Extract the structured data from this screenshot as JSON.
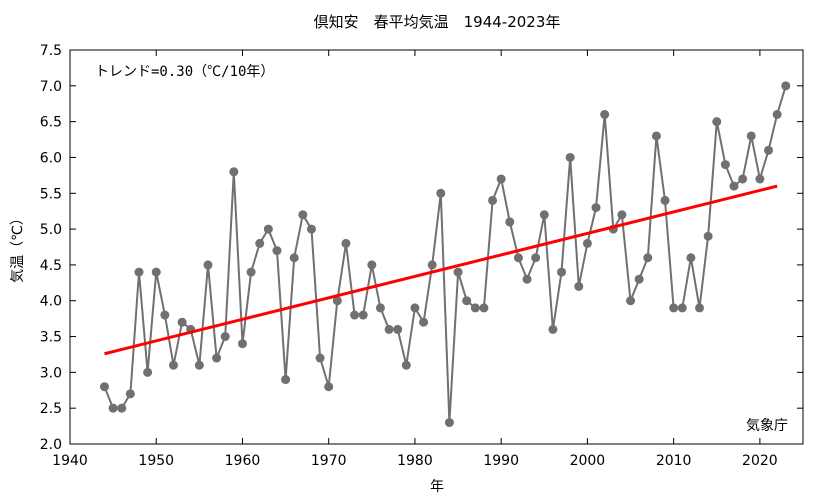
{
  "chart_data": {
    "type": "line",
    "title": "倶知安　春平均気温　1944-2023年",
    "xlabel": "年",
    "ylabel": "気温（℃）",
    "annotation": "トレンド=0.30（℃/10年）",
    "source": "気象庁",
    "xlim": [
      1940,
      2025
    ],
    "ylim": [
      2.0,
      7.5
    ],
    "x_ticks": [
      "1940",
      "1950",
      "1960",
      "1970",
      "1980",
      "1990",
      "2000",
      "2010",
      "2020"
    ],
    "y_ticks": [
      "2.0",
      "2.5",
      "3.0",
      "3.5",
      "4.0",
      "4.5",
      "5.0",
      "5.5",
      "6.0",
      "6.5",
      "7.0",
      "7.5"
    ],
    "grid": false,
    "series": [
      {
        "color": "#707070",
        "x": [
          1944,
          1945,
          1946,
          1947,
          1948,
          1949,
          1950,
          1951,
          1952,
          1953,
          1954,
          1955,
          1956,
          1957,
          1958,
          1959,
          1960,
          1961,
          1962,
          1963,
          1964,
          1965,
          1966,
          1967,
          1968,
          1969,
          1970,
          1971,
          1972,
          1973,
          1974,
          1975,
          1976,
          1977,
          1978,
          1979,
          1980,
          1981,
          1982,
          1983,
          1984,
          1985,
          1986,
          1987,
          1988,
          1989,
          1990,
          1991,
          1992,
          1993,
          1994,
          1995,
          1996,
          1997,
          1998,
          1999,
          2000,
          2001,
          2002,
          2003,
          2004,
          2005,
          2006,
          2007,
          2008,
          2009,
          2010,
          2011,
          2012,
          2013,
          2014,
          2015,
          2016,
          2017,
          2018,
          2019,
          2020,
          2021,
          2022,
          2023
        ],
        "values": [
          2.8,
          2.5,
          2.5,
          2.7,
          4.4,
          3.0,
          4.4,
          3.8,
          3.1,
          3.7,
          3.6,
          3.1,
          4.5,
          3.2,
          3.5,
          5.8,
          3.4,
          4.4,
          4.8,
          5.0,
          4.7,
          2.9,
          4.6,
          5.2,
          5.0,
          3.2,
          2.8,
          4.0,
          4.8,
          3.8,
          3.8,
          4.5,
          3.9,
          3.6,
          3.6,
          3.1,
          3.9,
          3.7,
          4.5,
          5.5,
          2.3,
          4.4,
          4.0,
          3.9,
          3.9,
          5.4,
          5.7,
          5.1,
          4.6,
          4.3,
          4.6,
          5.2,
          3.6,
          4.4,
          6.0,
          4.2,
          4.8,
          5.3,
          6.6,
          5.0,
          5.2,
          4.0,
          4.3,
          4.6,
          6.3,
          5.4,
          3.9,
          3.9,
          4.6,
          3.9,
          4.9,
          6.5,
          5.9,
          5.6,
          5.7,
          6.3,
          5.7,
          6.1,
          6.6,
          7.0
        ]
      },
      {
        "type": "trend",
        "color": "#ff0000",
        "x": [
          1944,
          2022
        ],
        "values": [
          3.26,
          5.6
        ]
      }
    ]
  }
}
